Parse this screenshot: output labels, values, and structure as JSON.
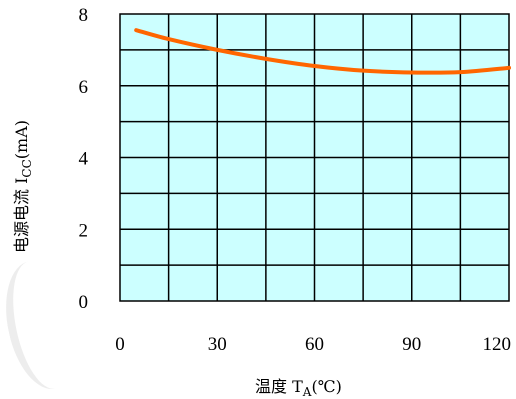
{
  "chart_data": {
    "type": "line",
    "title": "",
    "xlabel": "温度 T_A(℃)",
    "ylabel": "电源电流 I_CC(mA)",
    "xlim": [
      0,
      120
    ],
    "ylim": [
      0,
      8
    ],
    "x_ticks": [
      0,
      30,
      60,
      90,
      120
    ],
    "y_ticks": [
      0,
      2,
      4,
      6,
      8
    ],
    "grid": true,
    "background_color": "#ccffff",
    "series": [
      {
        "name": "",
        "color": "#ff6600",
        "x": [
          5,
          15,
          30,
          45,
          60,
          75,
          90,
          105,
          120
        ],
        "y": [
          7.55,
          7.3,
          7.0,
          6.75,
          6.55,
          6.42,
          6.37,
          6.38,
          6.5
        ]
      }
    ]
  },
  "labels": {
    "ylabel_prefix": "电源电流 I",
    "ylabel_sub": "CC",
    "ylabel_suffix": "(mA)",
    "xlabel_prefix": "温度 T",
    "xlabel_sub": "A",
    "xlabel_suffix": "(℃)"
  }
}
